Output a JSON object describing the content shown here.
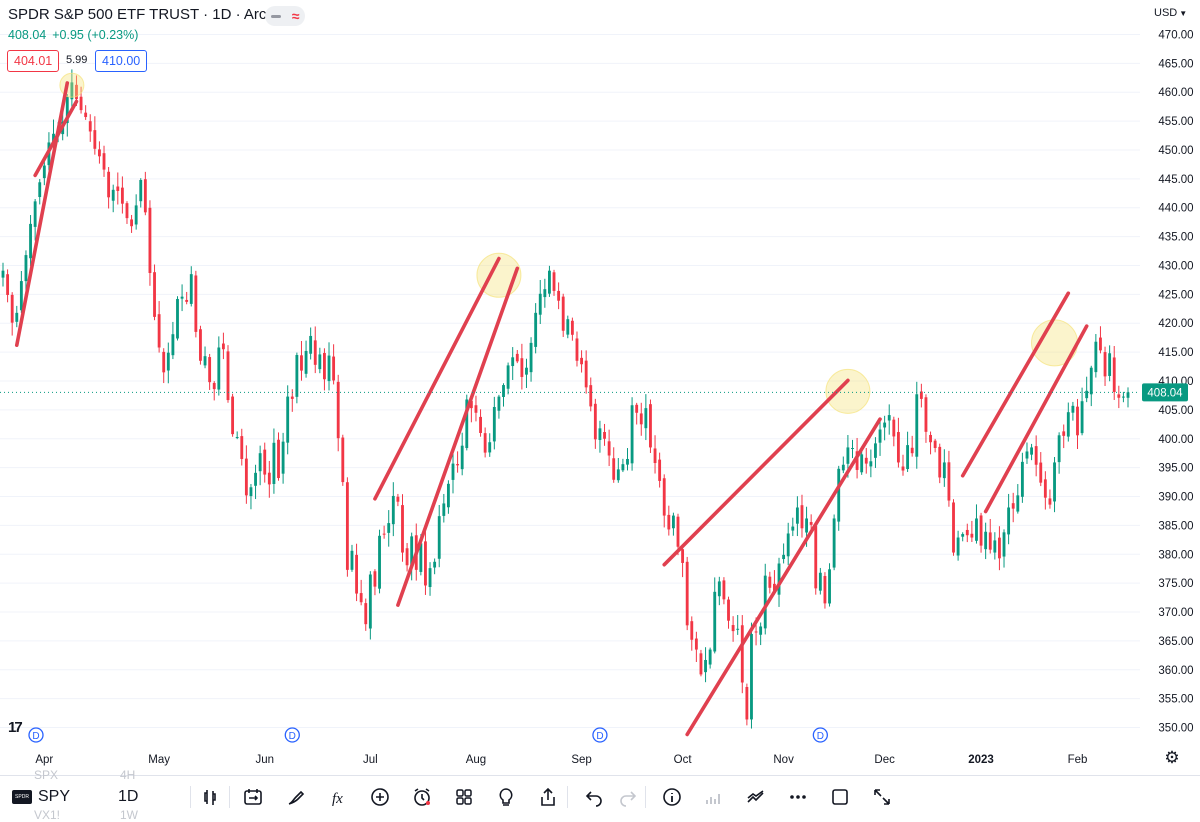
{
  "header": {
    "title": "SPDR S&P 500 ETF TRUST · 1D · Arca",
    "last_price": "408.04",
    "change": "+0.95 (+0.23%)",
    "bid": "404.01",
    "spread": "5.99",
    "ask": "410.00",
    "currency": "USD"
  },
  "toolbar": {
    "symbol": "SPY",
    "interval": "1D",
    "ghost_above_symbol": "SPX",
    "ghost_above_interval": "4H",
    "ghost_below_symbol": "VX1!",
    "ghost_below_interval": "1W",
    "tools": [
      "candles-icon",
      "replay-icon",
      "draw-icon",
      "indicators-icon",
      "add-icon",
      "alert-icon",
      "layout-icon",
      "ideas-icon",
      "share-icon",
      "undo-icon",
      "redo-icon",
      "info-icon",
      "volume-icon",
      "compare-icon",
      "more-icon",
      "fullscreen-icon",
      "expand-icon"
    ]
  },
  "colors": {
    "up": "#089981",
    "down": "#f23645",
    "trendline": "#e0404f",
    "highlight": "#f5e27a",
    "price_label_bg": "#089981"
  },
  "chart_data": {
    "type": "candlestick",
    "symbol": "SPY",
    "timeframe": "1D",
    "ylim": [
      347.5,
      472.5
    ],
    "y_ticks": [
      350,
      355,
      360,
      365,
      370,
      375,
      380,
      385,
      390,
      395,
      400,
      405,
      410,
      415,
      420,
      425,
      430,
      435,
      440,
      445,
      450,
      455,
      460,
      465,
      470
    ],
    "x_ticks": [
      "Apr",
      "May",
      "Jun",
      "Jul",
      "Aug",
      "Sep",
      "Oct",
      "Nov",
      "Dec",
      "2023",
      "Feb"
    ],
    "last_price": 408.04,
    "last_price_label": "408.04",
    "dividend_markers": [
      "D",
      "D",
      "D",
      "D"
    ],
    "closes": [
      429.1,
      424.9,
      420.1,
      421.8,
      427.3,
      431.8,
      437.2,
      441.1,
      444.4,
      447.3,
      451.3,
      452.8,
      453.3,
      454.9,
      459.2,
      461.7,
      458.8,
      456.9,
      455.7,
      453.2,
      450.2,
      448.9,
      446.6,
      441.8,
      443.1,
      442.9,
      440.7,
      438.2,
      436.8,
      440.4,
      444.8,
      439.2,
      428.7,
      421.1,
      415.8,
      411.5,
      414.9,
      418.1,
      424.2,
      424.6,
      423.7,
      428.5,
      418.5,
      413.5,
      414.3,
      409.8,
      408.6,
      415.8,
      415.5,
      406.7,
      400.8,
      400.3,
      396.5,
      390.2,
      391.6,
      394.1,
      397.5,
      393.8,
      392.1,
      399.3,
      393.2,
      399.5,
      407.3,
      406.9,
      414.5,
      411.8,
      415.2,
      417.8,
      412.8,
      414.6,
      410.3,
      414.4,
      410.1,
      400.1,
      392.5,
      377.3,
      380.6,
      373.2,
      371.7,
      367.9,
      376.5,
      374.4,
      383.2,
      383.5,
      385.4,
      390.1,
      389.1,
      380.3,
      378.1,
      383.1,
      377.3,
      381.9,
      374.6,
      377.6,
      378.7,
      386.6,
      388.8,
      392.2,
      395.7,
      395.4,
      398.8,
      406.8,
      405.3,
      404.5,
      401.0,
      397.6,
      399.4,
      405.5,
      407.3,
      409.3,
      412.7,
      414.1,
      413.4,
      410.7,
      412.3,
      416.6,
      421.8,
      425.1,
      425.9,
      429.1,
      425.6,
      423.9,
      418.7,
      420.7,
      418.0,
      413.5,
      412.9,
      408.9,
      405.6,
      399.9,
      401.8,
      400.0,
      397.1,
      392.9,
      394.7,
      395.6,
      396.5,
      405.8,
      404.5,
      402.5,
      405.3,
      398.5,
      395.8,
      392.7,
      386.7,
      384.3,
      386.7,
      381.3,
      378.5,
      367.7,
      365.2,
      363.5,
      359.2,
      361.7,
      363.5,
      373.5,
      375.3,
      372.2,
      368.5,
      366.7,
      367.1,
      357.8,
      351.4,
      366.2,
      366.5,
      367.5,
      376.3,
      374.2,
      373.3,
      378.4,
      379.9,
      383.6,
      384.8,
      388.1,
      384.5,
      386.2,
      385.1,
      374.1,
      376.8,
      371.5,
      377.4,
      386.2,
      394.8,
      395.5,
      398.5,
      398.4,
      394.6,
      397.3,
      395.7,
      396.1,
      399.2,
      401.6,
      402.8,
      404.1,
      400.4,
      395.9,
      394.5,
      398.9,
      397.5,
      407.7,
      406.9,
      401.2,
      399.4,
      398.4,
      393.3,
      395.9,
      389.3,
      380.3,
      382.9,
      383.5,
      383.3,
      382.9,
      386.2,
      381.5,
      383.9,
      380.8,
      382.4,
      379.3,
      383.8,
      388.1,
      387.9,
      390.2,
      396.0,
      397.8,
      398.5,
      395.5,
      392.4,
      389.8,
      388.6,
      395.9,
      400.6,
      400.5,
      404.6,
      405.7,
      400.6,
      406.5,
      408.3,
      412.3,
      416.8,
      415.3,
      410.8,
      414.8,
      408.1,
      407.1,
      407.3,
      408.04
    ]
  }
}
